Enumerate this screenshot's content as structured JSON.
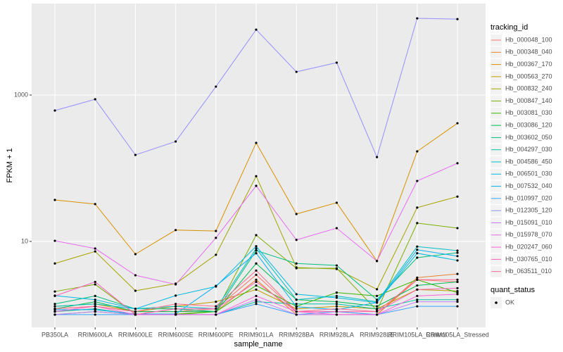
{
  "chart_data": {
    "type": "line",
    "x_label": "sample_name",
    "y_label": "FPKM + 1",
    "log_y": true,
    "grid": true,
    "categories": [
      "PB350LA",
      "RRIM600LA",
      "RRIM600LE",
      "RRIM600SE",
      "RRIM600PE",
      "RRIM901LA",
      "RRIM928BA",
      "RRIM928LA",
      "RRIM928LE",
      "RRIM105LA_Control",
      "RRIM105LA_Stressed"
    ],
    "ylim": [
      0.67,
      17800
    ],
    "yticks": [
      10,
      1000
    ],
    "legend_title": "tracking_id",
    "legend_position": "right",
    "series": [
      {
        "name": "Hb_000048_100",
        "color": "#F8766D",
        "values": [
          1.2,
          1.3,
          1.1,
          1.1,
          1.2,
          3.5,
          1.1,
          1.1,
          1.0,
          3.0,
          2.8
        ]
      },
      {
        "name": "Hb_000348_040",
        "color": "#EA8331",
        "values": [
          1.1,
          1.2,
          1.0,
          1.2,
          1.1,
          3.0,
          1.0,
          1.0,
          1.0,
          3.2,
          3.6
        ]
      },
      {
        "name": "Hb_000367_170",
        "color": "#D89000",
        "values": [
          36.9,
          32.4,
          6.7,
          14.3,
          13.9,
          222,
          23.7,
          33.8,
          5.4,
          170,
          412
        ]
      },
      {
        "name": "Hb_000563_270",
        "color": "#C09B00",
        "values": [
          1.3,
          1.4,
          1.1,
          1.3,
          1.5,
          2.2,
          1.2,
          1.3,
          1.2,
          2.2,
          2.1
        ]
      },
      {
        "name": "Hb_000832_240",
        "color": "#A3A500",
        "values": [
          5.0,
          7.3,
          2.12,
          2.65,
          6.57,
          78,
          4.4,
          4.2,
          2.22,
          29,
          41
        ]
      },
      {
        "name": "Hb_000847_140",
        "color": "#7CAE00",
        "values": [
          2.07,
          2.59,
          1.02,
          1.02,
          1.1,
          12.2,
          4.3,
          4.3,
          1.14,
          17.8,
          15.2
        ]
      },
      {
        "name": "Hb_003081_030",
        "color": "#39B600",
        "values": [
          1.0,
          1.1,
          1.0,
          1.0,
          1.1,
          2.5,
          1.3,
          2.0,
          1.8,
          3.0,
          2.0
        ]
      },
      {
        "name": "Hb_003086_120",
        "color": "#00BB4E",
        "values": [
          1.2,
          1.5,
          1.1,
          1.1,
          1.1,
          5.0,
          1.6,
          1.5,
          1.3,
          2.5,
          2.8
        ]
      },
      {
        "name": "Hb_003602_050",
        "color": "#00BF7D",
        "values": [
          1.4,
          1.8,
          1.2,
          1.2,
          1.1,
          7.5,
          5.0,
          4.7,
          1.6,
          6.0,
          7.0
        ]
      },
      {
        "name": "Hb_004297_030",
        "color": "#00C1A3",
        "values": [
          1.1,
          1.2,
          1.0,
          1.0,
          1.0,
          1.5,
          1.4,
          1.4,
          1.2,
          1.6,
          1.6
        ]
      },
      {
        "name": "Hb_004586_450",
        "color": "#00BFC4",
        "values": [
          1.3,
          1.4,
          1.2,
          1.3,
          1.2,
          8.0,
          1.6,
          1.8,
          1.5,
          8.5,
          7.5
        ]
      },
      {
        "name": "Hb_006501_030",
        "color": "#00BAE0",
        "values": [
          1.82,
          1.6,
          1.2,
          1.82,
          2.42,
          8.6,
          1.9,
          1.7,
          1.46,
          6.9,
          5.5
        ]
      },
      {
        "name": "Hb_007532_040",
        "color": "#00B0F6",
        "values": [
          1.17,
          1.17,
          1.02,
          1.02,
          2.47,
          6.9,
          1.28,
          1.17,
          1.46,
          7.7,
          6.3
        ]
      },
      {
        "name": "Hb_010997_020",
        "color": "#35A2FF",
        "values": [
          1.0,
          1.0,
          1.0,
          1.0,
          1.0,
          1.4,
          1.0,
          1.1,
          1.0,
          1.3,
          1.3
        ]
      },
      {
        "name": "Hb_012305_120",
        "color": "#9590FF",
        "values": [
          614,
          875,
          152,
          232,
          1303,
          7830,
          2075,
          2770,
          142,
          11170,
          10900
        ]
      },
      {
        "name": "Hb_015091_010",
        "color": "#C77CFF",
        "values": [
          1.0,
          1.1,
          1.0,
          1.0,
          1.0,
          1.6,
          1.0,
          1.0,
          1.0,
          1.5,
          1.5
        ]
      },
      {
        "name": "Hb_015978_070",
        "color": "#E76BF3",
        "values": [
          10.2,
          8.0,
          3.45,
          2.59,
          11.2,
          57.5,
          10.5,
          15.2,
          5.4,
          67,
          117
        ]
      },
      {
        "name": "Hb_020247_060",
        "color": "#FA62DB",
        "values": [
          1.1,
          1.3,
          1.0,
          1.0,
          1.0,
          1.8,
          1.1,
          1.0,
          1.0,
          1.8,
          1.9
        ]
      },
      {
        "name": "Hb_030765_010",
        "color": "#FF62BC",
        "values": [
          1.8,
          2.8,
          1.0,
          1.2,
          1.2,
          2.8,
          1.1,
          1.1,
          1.1,
          2.2,
          2.3
        ]
      },
      {
        "name": "Hb_063511_010",
        "color": "#FF6C91",
        "values": [
          1.2,
          1.3,
          1.1,
          1.4,
          1.3,
          4.0,
          1.1,
          1.2,
          1.1,
          3.0,
          3.0
        ]
      }
    ],
    "shape_legend": {
      "title": "quant_status",
      "labels": [
        "OK"
      ]
    }
  }
}
